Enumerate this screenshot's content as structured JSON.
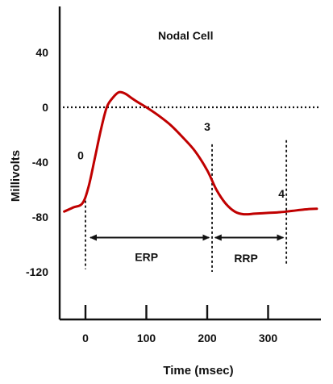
{
  "chart_data": {
    "type": "line",
    "title": "Nodal Cell",
    "xlabel": "Time (msec)",
    "ylabel": "Millivolts",
    "xlim": [
      -40,
      400
    ],
    "ylim": [
      -150,
      75
    ],
    "x_ticks": [
      0,
      100,
      200,
      300
    ],
    "x_tick_labels": [
      "0",
      "100",
      "200",
      "300"
    ],
    "y_ticks": [
      40,
      0,
      -40,
      -80,
      -120
    ],
    "y_tick_labels": [
      "40",
      "0",
      "-40",
      "-80",
      "-120"
    ],
    "reference_line": {
      "y": 0,
      "style": "dotted"
    },
    "series": [
      {
        "name": "Action potential",
        "color": "#c00000",
        "x": [
          -35,
          -20,
          -5,
          5,
          15,
          25,
          35,
          45,
          55,
          65,
          75,
          85,
          100,
          120,
          140,
          160,
          180,
          200,
          215,
          230,
          245,
          260,
          280,
          300,
          320,
          340,
          360,
          380
        ],
        "y": [
          -76,
          -73,
          -70,
          -58,
          -38,
          -17,
          0,
          7,
          11,
          10,
          7,
          4,
          0,
          -6,
          -13,
          -22,
          -32,
          -46,
          -60,
          -70,
          -76,
          -78,
          -77.5,
          -77,
          -76.5,
          -75.5,
          -74.5,
          -74
        ]
      }
    ],
    "markers": [
      {
        "label": "0",
        "x": 0,
        "y_from": -68,
        "y_to": -118,
        "label_y": -38
      },
      {
        "label": "3",
        "x": 208,
        "y_from": -27,
        "y_to": -120,
        "label_y": -17
      },
      {
        "label": "4",
        "x": 330,
        "y_from": -24,
        "y_to": -115,
        "label_y": -66
      }
    ],
    "intervals": [
      {
        "label": "ERP",
        "x_from": 8,
        "x_to": 203,
        "y": -95,
        "label_y": -112
      },
      {
        "label": "RRP",
        "x_from": 213,
        "x_to": 325,
        "y": -95,
        "label_y": -113
      }
    ]
  }
}
